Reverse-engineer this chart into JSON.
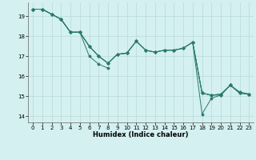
{
  "title": "",
  "xlabel": "Humidex (Indice chaleur)",
  "bg_color": "#d4f0f0",
  "line_color": "#2a7a6a",
  "grid_color": "#b8dada",
  "xlim": [
    -0.5,
    23.5
  ],
  "ylim": [
    13.7,
    19.7
  ],
  "xticks": [
    0,
    1,
    2,
    3,
    4,
    5,
    6,
    7,
    8,
    9,
    10,
    11,
    12,
    13,
    14,
    15,
    16,
    17,
    18,
    19,
    20,
    21,
    22,
    23
  ],
  "yticks": [
    14,
    15,
    16,
    17,
    18,
    19
  ],
  "series": [
    [
      19.35,
      19.35,
      19.1,
      18.85,
      18.2,
      18.2,
      17.5,
      17.0,
      16.65,
      17.1,
      17.15,
      17.75,
      17.3,
      17.2,
      17.3,
      17.3,
      17.4,
      17.7,
      15.15,
      15.05,
      15.05,
      15.55,
      15.15,
      15.1
    ],
    [
      19.35,
      19.35,
      19.1,
      18.85,
      18.2,
      18.2,
      17.5,
      17.0,
      16.65,
      17.1,
      17.15,
      17.75,
      17.3,
      17.2,
      17.3,
      17.3,
      17.4,
      17.7,
      15.15,
      15.05,
      15.1,
      15.55,
      15.2,
      15.1
    ],
    [
      19.35,
      19.35,
      19.1,
      18.85,
      18.2,
      18.2,
      17.5,
      17.0,
      16.65,
      17.1,
      17.15,
      17.75,
      17.3,
      17.2,
      17.3,
      17.3,
      17.4,
      17.7,
      15.15,
      15.05,
      15.1,
      15.55,
      15.2,
      15.1
    ],
    [
      19.35,
      19.35,
      19.1,
      18.85,
      18.2,
      18.2,
      17.0,
      16.6,
      16.4,
      null,
      17.15,
      null,
      null,
      null,
      null,
      null,
      null,
      17.7,
      14.1,
      14.9,
      15.05,
      15.55,
      15.15,
      15.1
    ]
  ],
  "xlabel_fontsize": 6,
  "tick_fontsize": 5,
  "linewidth": 0.7,
  "markersize": 1.5
}
